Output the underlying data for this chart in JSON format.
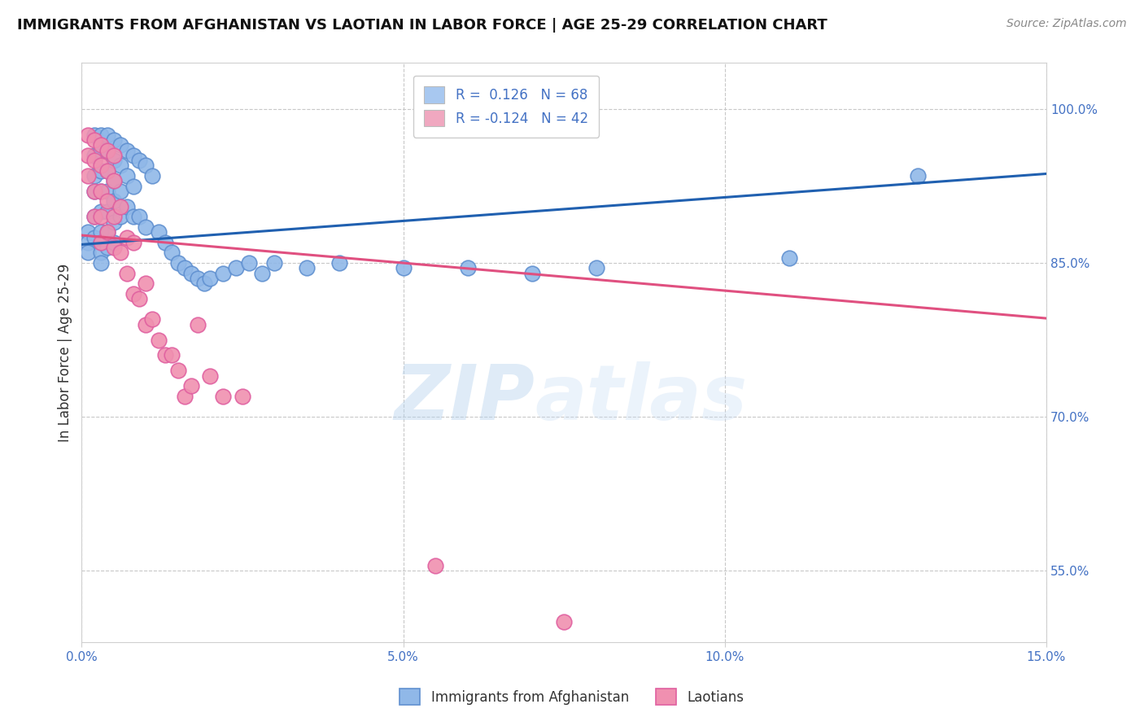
{
  "title": "IMMIGRANTS FROM AFGHANISTAN VS LAOTIAN IN LABOR FORCE | AGE 25-29 CORRELATION CHART",
  "source": "Source: ZipAtlas.com",
  "ylabel": "In Labor Force | Age 25-29",
  "xlim": [
    0.0,
    0.15
  ],
  "ylim": [
    0.48,
    1.045
  ],
  "yticks": [
    0.55,
    0.7,
    0.85,
    1.0
  ],
  "ytick_labels": [
    "55.0%",
    "70.0%",
    "85.0%",
    "100.0%"
  ],
  "xticks": [
    0.0,
    0.05,
    0.1,
    0.15
  ],
  "xtick_labels": [
    "0.0%",
    "5.0%",
    "10.0%",
    "15.0%"
  ],
  "legend_entries": [
    {
      "label": "R =  0.126   N = 68",
      "color": "#a8c8f0"
    },
    {
      "label": "R = -0.124   N = 42",
      "color": "#f0a8c0"
    }
  ],
  "blue_line_x": [
    0.0,
    0.15
  ],
  "blue_line_y": [
    0.868,
    0.937
  ],
  "pink_line_x": [
    0.0,
    0.15
  ],
  "pink_line_y": [
    0.877,
    0.796
  ],
  "blue_line_color": "#2060b0",
  "pink_line_color": "#e05080",
  "blue_dot_color": "#90b8e8",
  "pink_dot_color": "#f090b0",
  "blue_dot_edge": "#6090d0",
  "pink_dot_edge": "#e060a0",
  "watermark": "ZIPatlas",
  "title_fontsize": 13,
  "tick_label_color": "#4472c4",
  "grid_color": "#c8c8c8",
  "blue_scatter_x": [
    0.001,
    0.001,
    0.001,
    0.002,
    0.002,
    0.002,
    0.002,
    0.002,
    0.002,
    0.003,
    0.003,
    0.003,
    0.003,
    0.003,
    0.003,
    0.003,
    0.003,
    0.003,
    0.004,
    0.004,
    0.004,
    0.004,
    0.004,
    0.004,
    0.004,
    0.005,
    0.005,
    0.005,
    0.005,
    0.005,
    0.005,
    0.006,
    0.006,
    0.006,
    0.006,
    0.007,
    0.007,
    0.007,
    0.008,
    0.008,
    0.008,
    0.009,
    0.009,
    0.01,
    0.01,
    0.011,
    0.012,
    0.013,
    0.014,
    0.015,
    0.016,
    0.017,
    0.018,
    0.019,
    0.02,
    0.022,
    0.024,
    0.026,
    0.028,
    0.03,
    0.035,
    0.04,
    0.05,
    0.06,
    0.07,
    0.08,
    0.11,
    0.13
  ],
  "blue_scatter_y": [
    0.88,
    0.87,
    0.86,
    0.975,
    0.955,
    0.935,
    0.92,
    0.895,
    0.875,
    0.975,
    0.96,
    0.94,
    0.92,
    0.9,
    0.88,
    0.87,
    0.86,
    0.85,
    0.975,
    0.96,
    0.94,
    0.92,
    0.9,
    0.88,
    0.865,
    0.97,
    0.95,
    0.93,
    0.91,
    0.89,
    0.87,
    0.965,
    0.945,
    0.92,
    0.895,
    0.96,
    0.935,
    0.905,
    0.955,
    0.925,
    0.895,
    0.95,
    0.895,
    0.945,
    0.885,
    0.935,
    0.88,
    0.87,
    0.86,
    0.85,
    0.845,
    0.84,
    0.835,
    0.83,
    0.835,
    0.84,
    0.845,
    0.85,
    0.84,
    0.85,
    0.845,
    0.85,
    0.845,
    0.845,
    0.84,
    0.845,
    0.855,
    0.935
  ],
  "pink_scatter_x": [
    0.001,
    0.001,
    0.001,
    0.002,
    0.002,
    0.002,
    0.002,
    0.003,
    0.003,
    0.003,
    0.003,
    0.003,
    0.004,
    0.004,
    0.004,
    0.004,
    0.005,
    0.005,
    0.005,
    0.005,
    0.006,
    0.006,
    0.007,
    0.007,
    0.008,
    0.008,
    0.009,
    0.01,
    0.01,
    0.011,
    0.012,
    0.013,
    0.014,
    0.015,
    0.016,
    0.017,
    0.018,
    0.02,
    0.022,
    0.025,
    0.055,
    0.075
  ],
  "pink_scatter_y": [
    0.975,
    0.955,
    0.935,
    0.97,
    0.95,
    0.92,
    0.895,
    0.965,
    0.945,
    0.92,
    0.895,
    0.87,
    0.96,
    0.94,
    0.91,
    0.88,
    0.955,
    0.93,
    0.895,
    0.865,
    0.905,
    0.86,
    0.875,
    0.84,
    0.87,
    0.82,
    0.815,
    0.83,
    0.79,
    0.795,
    0.775,
    0.76,
    0.76,
    0.745,
    0.72,
    0.73,
    0.79,
    0.74,
    0.72,
    0.72,
    0.555,
    0.5
  ]
}
